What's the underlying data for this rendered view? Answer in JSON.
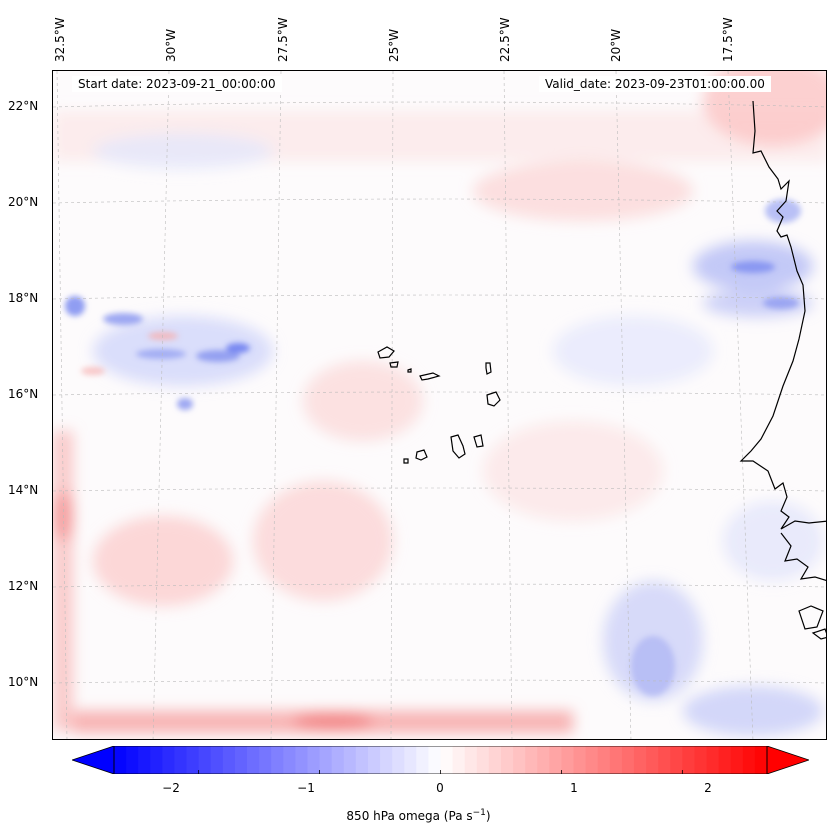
{
  "header": {
    "start_date": "Start date: 2023-09-21_00:00:00",
    "valid_date": "Valid_date: 2023-09-23T01:00:00.00"
  },
  "axes": {
    "lon_labels": [
      "32.5°W",
      "30°W",
      "27.5°W",
      "25°W",
      "22.5°W",
      "20°W",
      "17.5°W"
    ],
    "lat_labels": [
      "22°N",
      "20°N",
      "18°N",
      "16°N",
      "14°N",
      "12°N",
      "10°N"
    ]
  },
  "colorbar": {
    "ticks": [
      "−2",
      "−1",
      "0",
      "1",
      "2"
    ],
    "label_text": "850 hPa omega (Pa s",
    "label_exp": "−1",
    "label_close": ")",
    "min": -2.7,
    "max": 2.7,
    "colormap": "bwr",
    "low_color": "#0000ff",
    "high_color": "#ff0000"
  },
  "colors": {
    "coastline": "#000000",
    "gridline": "#bbbbbb",
    "strong_ascent": "#5a6cf2",
    "strong_descent": "#f27a7a"
  }
}
